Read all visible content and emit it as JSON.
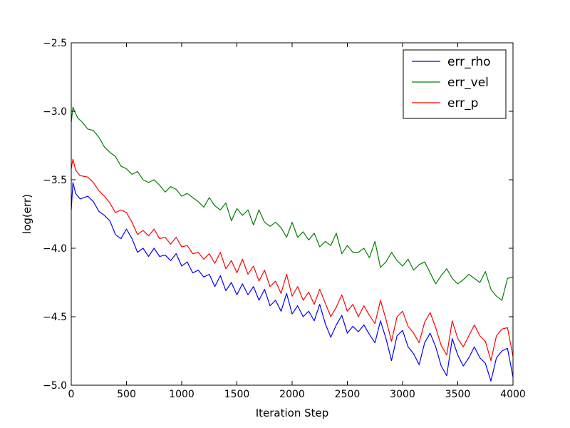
{
  "chart_data": {
    "type": "line",
    "xlabel": "Iteration Step",
    "ylabel": "log(err)",
    "xlim": [
      0,
      4000
    ],
    "ylim": [
      -5.0,
      -2.5
    ],
    "xticks": [
      0,
      500,
      1000,
      1500,
      2000,
      2500,
      3000,
      3500,
      4000
    ],
    "xtick_labels": [
      "0",
      "500",
      "1000",
      "1500",
      "2000",
      "2500",
      "3000",
      "3500",
      "4000"
    ],
    "yticks": [
      -2.5,
      -3.0,
      -3.5,
      -4.0,
      -4.5,
      -5.0
    ],
    "ytick_labels": [
      "−2.5",
      "−3.0",
      "−3.5",
      "−4.0",
      "−4.5",
      "−5.0"
    ],
    "grid": false,
    "legend_position": "top-right",
    "series": [
      {
        "name": "err_rho",
        "color": "#0000ff",
        "x": [
          0,
          15,
          40,
          80,
          150,
          200,
          250,
          300,
          350,
          400,
          450,
          500,
          550,
          600,
          650,
          700,
          750,
          800,
          850,
          900,
          950,
          1000,
          1050,
          1100,
          1150,
          1200,
          1250,
          1300,
          1350,
          1400,
          1450,
          1500,
          1550,
          1600,
          1650,
          1700,
          1750,
          1800,
          1850,
          1900,
          1950,
          2000,
          2050,
          2100,
          2150,
          2200,
          2250,
          2300,
          2350,
          2400,
          2450,
          2500,
          2550,
          2600,
          2650,
          2700,
          2750,
          2800,
          2850,
          2900,
          2950,
          3000,
          3050,
          3100,
          3150,
          3200,
          3250,
          3300,
          3350,
          3400,
          3450,
          3500,
          3550,
          3600,
          3650,
          3700,
          3750,
          3800,
          3850,
          3900,
          3950,
          4000
        ],
        "values": [
          -3.72,
          -3.52,
          -3.6,
          -3.64,
          -3.62,
          -3.66,
          -3.73,
          -3.76,
          -3.8,
          -3.9,
          -3.93,
          -3.86,
          -3.93,
          -4.03,
          -4.0,
          -4.06,
          -4.0,
          -4.06,
          -4.05,
          -4.09,
          -4.04,
          -4.13,
          -4.1,
          -4.18,
          -4.16,
          -4.21,
          -4.19,
          -4.28,
          -4.2,
          -4.31,
          -4.25,
          -4.34,
          -4.26,
          -4.34,
          -4.28,
          -4.38,
          -4.3,
          -4.42,
          -4.38,
          -4.46,
          -4.33,
          -4.48,
          -4.42,
          -4.5,
          -4.46,
          -4.53,
          -4.41,
          -4.55,
          -4.65,
          -4.56,
          -4.49,
          -4.62,
          -4.57,
          -4.61,
          -4.56,
          -4.63,
          -4.69,
          -4.53,
          -4.66,
          -4.82,
          -4.64,
          -4.6,
          -4.72,
          -4.77,
          -4.85,
          -4.69,
          -4.62,
          -4.72,
          -4.86,
          -4.93,
          -4.66,
          -4.78,
          -4.86,
          -4.8,
          -4.72,
          -4.8,
          -4.84,
          -4.97,
          -4.8,
          -4.75,
          -4.73,
          -4.94
        ]
      },
      {
        "name": "err_vel",
        "color": "#008000",
        "x": [
          0,
          15,
          30,
          60,
          100,
          150,
          200,
          250,
          300,
          350,
          400,
          450,
          500,
          550,
          600,
          650,
          700,
          750,
          800,
          850,
          900,
          950,
          1000,
          1050,
          1100,
          1150,
          1200,
          1250,
          1300,
          1350,
          1400,
          1450,
          1500,
          1550,
          1600,
          1650,
          1700,
          1750,
          1800,
          1850,
          1900,
          1950,
          2000,
          2050,
          2100,
          2150,
          2200,
          2250,
          2300,
          2350,
          2400,
          2450,
          2500,
          2550,
          2600,
          2650,
          2700,
          2750,
          2800,
          2850,
          2900,
          2950,
          3000,
          3050,
          3100,
          3150,
          3200,
          3250,
          3300,
          3350,
          3400,
          3450,
          3500,
          3550,
          3600,
          3650,
          3700,
          3750,
          3800,
          3850,
          3900,
          3950,
          4000
        ],
        "values": [
          -3.08,
          -2.97,
          -3.0,
          -3.05,
          -3.08,
          -3.13,
          -3.14,
          -3.19,
          -3.26,
          -3.3,
          -3.33,
          -3.4,
          -3.42,
          -3.46,
          -3.44,
          -3.5,
          -3.52,
          -3.5,
          -3.54,
          -3.59,
          -3.55,
          -3.57,
          -3.62,
          -3.6,
          -3.63,
          -3.66,
          -3.7,
          -3.63,
          -3.69,
          -3.72,
          -3.67,
          -3.8,
          -3.71,
          -3.76,
          -3.72,
          -3.83,
          -3.72,
          -3.81,
          -3.84,
          -3.81,
          -3.85,
          -3.92,
          -3.81,
          -3.92,
          -3.88,
          -3.94,
          -3.89,
          -3.99,
          -3.95,
          -3.98,
          -3.89,
          -4.04,
          -3.98,
          -4.03,
          -4.03,
          -4.0,
          -4.07,
          -3.95,
          -4.14,
          -4.1,
          -4.03,
          -4.09,
          -4.13,
          -4.08,
          -4.16,
          -4.12,
          -4.1,
          -4.18,
          -4.26,
          -4.2,
          -4.15,
          -4.22,
          -4.26,
          -4.23,
          -4.19,
          -4.22,
          -4.25,
          -4.17,
          -4.3,
          -4.35,
          -4.38,
          -4.22,
          -4.21
        ]
      },
      {
        "name": "err_p",
        "color": "#ff0000",
        "x": [
          0,
          15,
          40,
          80,
          150,
          200,
          250,
          300,
          350,
          400,
          450,
          500,
          550,
          600,
          650,
          700,
          750,
          800,
          850,
          900,
          950,
          1000,
          1050,
          1100,
          1150,
          1200,
          1250,
          1300,
          1350,
          1400,
          1450,
          1500,
          1550,
          1600,
          1650,
          1700,
          1750,
          1800,
          1850,
          1900,
          1950,
          2000,
          2050,
          2100,
          2150,
          2200,
          2250,
          2300,
          2350,
          2400,
          2450,
          2500,
          2550,
          2600,
          2650,
          2700,
          2750,
          2800,
          2850,
          2900,
          2950,
          3000,
          3050,
          3100,
          3150,
          3200,
          3250,
          3300,
          3350,
          3400,
          3450,
          3500,
          3550,
          3600,
          3650,
          3700,
          3750,
          3800,
          3850,
          3900,
          3950,
          4000
        ],
        "values": [
          -3.42,
          -3.35,
          -3.43,
          -3.47,
          -3.48,
          -3.52,
          -3.58,
          -3.62,
          -3.67,
          -3.74,
          -3.72,
          -3.74,
          -3.81,
          -3.9,
          -3.87,
          -3.91,
          -3.86,
          -3.93,
          -3.92,
          -3.97,
          -3.92,
          -3.99,
          -3.98,
          -4.04,
          -4.03,
          -4.08,
          -4.04,
          -4.11,
          -4.03,
          -4.15,
          -4.09,
          -4.18,
          -4.08,
          -4.19,
          -4.13,
          -4.24,
          -4.16,
          -4.28,
          -4.24,
          -4.33,
          -4.19,
          -4.35,
          -4.28,
          -4.38,
          -4.32,
          -4.41,
          -4.3,
          -4.4,
          -4.5,
          -4.43,
          -4.34,
          -4.46,
          -4.41,
          -4.5,
          -4.42,
          -4.49,
          -4.55,
          -4.38,
          -4.52,
          -4.68,
          -4.5,
          -4.46,
          -4.57,
          -4.62,
          -4.69,
          -4.54,
          -4.47,
          -4.58,
          -4.71,
          -4.78,
          -4.53,
          -4.66,
          -4.72,
          -4.64,
          -4.56,
          -4.64,
          -4.68,
          -4.82,
          -4.64,
          -4.59,
          -4.58,
          -4.79
        ]
      }
    ]
  }
}
